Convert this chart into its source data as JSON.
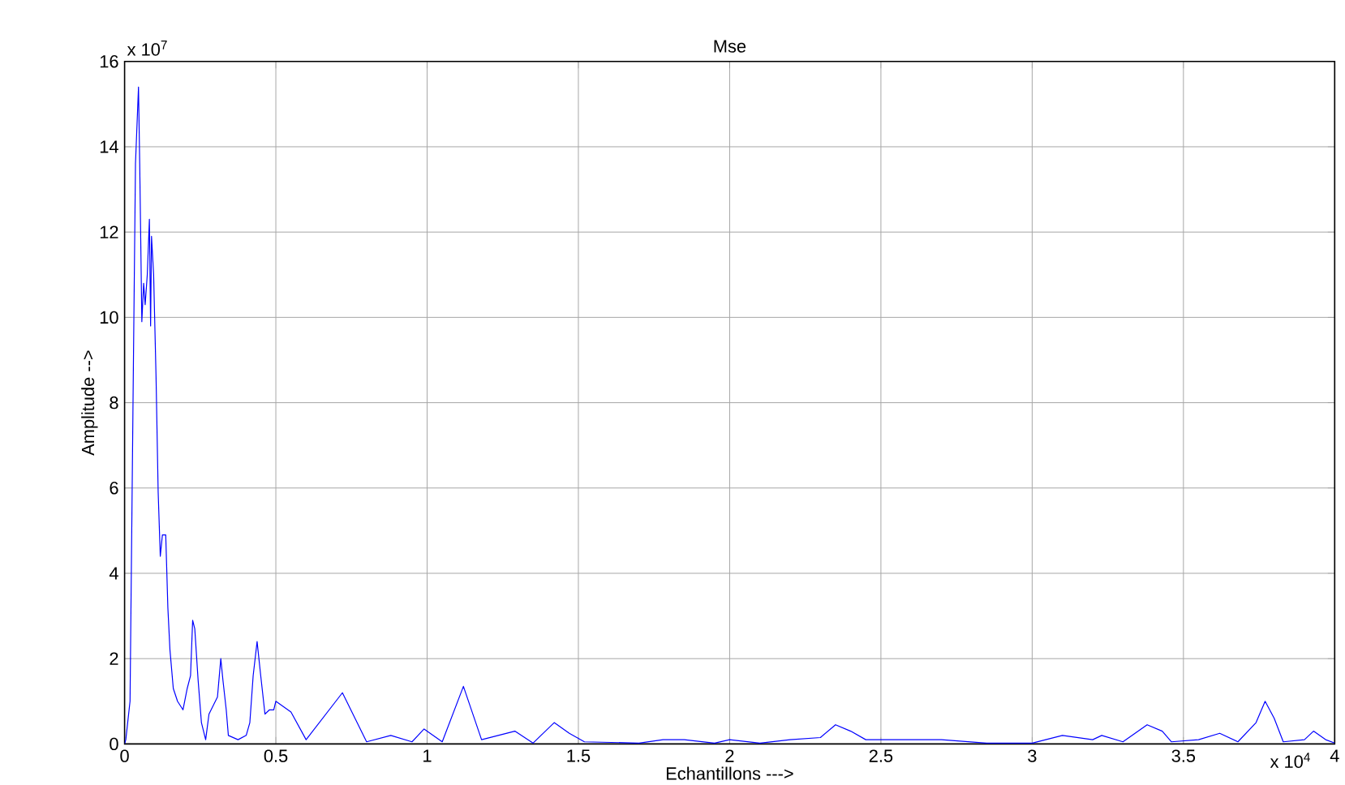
{
  "chart_data": {
    "type": "line",
    "title": "Mse",
    "xlabel": "Echantillons  --->",
    "ylabel": "Amplitude -->",
    "annotations": [
      "x 10$^{7}$",
      "x 10$^{4}$"
    ],
    "xlim": [
      0,
      4
    ],
    "ylim": [
      0,
      16
    ],
    "xticks": [
      0,
      0.5,
      1,
      1.5,
      2,
      2.5,
      3,
      3.5,
      4
    ],
    "yticks": [
      0,
      2,
      4,
      6,
      8,
      10,
      12,
      14,
      16
    ],
    "grid": true,
    "line_style": "solid",
    "series": [
      {
        "color": "#0000ff",
        "x": [
          0,
          0.004,
          0.018,
          0.029,
          0.036,
          0.046,
          0.05,
          0.057,
          0.063,
          0.068,
          0.075,
          0.082,
          0.086,
          0.089,
          0.096,
          0.104,
          0.111,
          0.118,
          0.125,
          0.136,
          0.143,
          0.15,
          0.161,
          0.175,
          0.193,
          0.207,
          0.218,
          0.225,
          0.232,
          0.243,
          0.254,
          0.268,
          0.279,
          0.293,
          0.307,
          0.318,
          0.325,
          0.336,
          0.343,
          0.375,
          0.402,
          0.414,
          0.425,
          0.438,
          0.45,
          0.464,
          0.479,
          0.493,
          0.5,
          0.55,
          0.6,
          0.72,
          0.8,
          0.88,
          0.95,
          0.99,
          1.05,
          1.12,
          1.18,
          1.29,
          1.35,
          1.42,
          1.47,
          1.52,
          1.7,
          1.78,
          1.85,
          1.95,
          2.0,
          2.1,
          2.2,
          2.3,
          2.35,
          2.4,
          2.45,
          2.55,
          2.7,
          2.85,
          3.0,
          3.1,
          3.2,
          3.23,
          3.3,
          3.38,
          3.43,
          3.46,
          3.55,
          3.62,
          3.68,
          3.74,
          3.77,
          3.8,
          3.83,
          3.9,
          3.93,
          3.97,
          4.0
        ],
        "values": [
          0,
          0.1,
          1.0,
          8.8,
          13.6,
          15.4,
          13.6,
          9.9,
          10.8,
          10.3,
          11.0,
          12.3,
          9.8,
          11.9,
          11.0,
          8.6,
          5.9,
          4.4,
          4.9,
          4.9,
          3.2,
          2.2,
          1.3,
          1.0,
          0.8,
          1.3,
          1.6,
          2.9,
          2.7,
          1.5,
          0.5,
          0.1,
          0.7,
          0.9,
          1.1,
          2.0,
          1.5,
          0.8,
          0.2,
          0.1,
          0.2,
          0.5,
          1.6,
          2.4,
          1.6,
          0.7,
          0.8,
          0.8,
          1.0,
          0.75,
          0.1,
          1.2,
          0.05,
          0.2,
          0.05,
          0.35,
          0.05,
          1.35,
          0.1,
          0.3,
          0.02,
          0.5,
          0.25,
          0.05,
          0.02,
          0.1,
          0.1,
          0.02,
          0.1,
          0.02,
          0.1,
          0.15,
          0.45,
          0.3,
          0.1,
          0.1,
          0.1,
          0.02,
          0.02,
          0.2,
          0.1,
          0.2,
          0.05,
          0.45,
          0.3,
          0.05,
          0.1,
          0.25,
          0.05,
          0.5,
          1.0,
          0.6,
          0.05,
          0.1,
          0.3,
          0.1,
          0.02
        ]
      }
    ]
  }
}
